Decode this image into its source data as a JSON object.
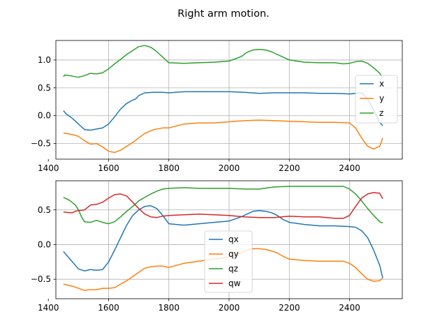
{
  "title": "Right arm motion.",
  "chart_data": [
    {
      "type": "line",
      "title": "",
      "xlabel": "",
      "ylabel": "",
      "xlim": [
        1425,
        2575
      ],
      "ylim": [
        -0.78,
        1.35
      ],
      "xticks": [
        1400,
        1600,
        1800,
        2000,
        2200,
        2400
      ],
      "yticks": [
        -0.5,
        0.0,
        0.5,
        1.0
      ],
      "xtick_labels": [
        "1400",
        "1600",
        "1800",
        "2000",
        "2200",
        "2400"
      ],
      "ytick_labels": [
        "−0.5",
        "0.0",
        "0.5",
        "1.0"
      ],
      "grid": true,
      "legend_position": "center-right",
      "series": [
        {
          "name": "x",
          "color": "#1f77b4",
          "x": [
            1450,
            1460,
            1480,
            1500,
            1520,
            1540,
            1560,
            1580,
            1600,
            1620,
            1640,
            1660,
            1680,
            1690,
            1700,
            1720,
            1750,
            1780,
            1800,
            1850,
            1900,
            1950,
            2000,
            2050,
            2100,
            2150,
            2200,
            2250,
            2300,
            2350,
            2400,
            2420,
            2440,
            2460,
            2480,
            2500,
            2510
          ],
          "y": [
            0.09,
            0.03,
            -0.05,
            -0.15,
            -0.25,
            -0.26,
            -0.24,
            -0.22,
            -0.15,
            -0.02,
            0.12,
            0.22,
            0.28,
            0.3,
            0.36,
            0.41,
            0.42,
            0.42,
            0.41,
            0.43,
            0.43,
            0.43,
            0.43,
            0.42,
            0.4,
            0.41,
            0.41,
            0.41,
            0.4,
            0.4,
            0.39,
            0.4,
            0.41,
            0.3,
            0.1,
            -0.12,
            -0.18
          ]
        },
        {
          "name": "y",
          "color": "#ff7f0e",
          "x": [
            1450,
            1480,
            1500,
            1520,
            1540,
            1560,
            1580,
            1600,
            1620,
            1640,
            1660,
            1680,
            1700,
            1720,
            1750,
            1780,
            1800,
            1850,
            1900,
            1950,
            2000,
            2050,
            2100,
            2150,
            2200,
            2250,
            2300,
            2350,
            2400,
            2420,
            2440,
            2460,
            2480,
            2500,
            2510
          ],
          "y": [
            -0.31,
            -0.34,
            -0.37,
            -0.45,
            -0.51,
            -0.5,
            -0.56,
            -0.64,
            -0.66,
            -0.62,
            -0.55,
            -0.48,
            -0.4,
            -0.32,
            -0.25,
            -0.22,
            -0.22,
            -0.15,
            -0.13,
            -0.13,
            -0.11,
            -0.09,
            -0.08,
            -0.09,
            -0.1,
            -0.11,
            -0.12,
            -0.12,
            -0.13,
            -0.22,
            -0.4,
            -0.55,
            -0.6,
            -0.55,
            -0.4
          ]
        },
        {
          "name": "z",
          "color": "#2ca02c",
          "x": [
            1450,
            1455,
            1470,
            1500,
            1520,
            1540,
            1560,
            1580,
            1600,
            1620,
            1640,
            1660,
            1680,
            1700,
            1720,
            1740,
            1760,
            1780,
            1800,
            1850,
            1900,
            1950,
            2000,
            2040,
            2060,
            2080,
            2100,
            2120,
            2140,
            2160,
            2180,
            2200,
            2250,
            2300,
            2350,
            2380,
            2400,
            2420,
            2440,
            2460,
            2480,
            2500,
            2510
          ],
          "y": [
            0.7,
            0.73,
            0.72,
            0.69,
            0.72,
            0.76,
            0.75,
            0.77,
            0.84,
            0.93,
            1.01,
            1.1,
            1.17,
            1.24,
            1.26,
            1.23,
            1.15,
            1.05,
            0.95,
            0.94,
            0.95,
            0.96,
            0.98,
            1.06,
            1.14,
            1.18,
            1.19,
            1.18,
            1.15,
            1.1,
            1.05,
            1.0,
            0.96,
            0.95,
            0.95,
            0.93,
            0.94,
            0.97,
            0.98,
            0.94,
            0.86,
            0.76,
            0.68
          ]
        }
      ]
    },
    {
      "type": "line",
      "title": "",
      "xlabel": "",
      "ylabel": "",
      "xlim": [
        1425,
        2575
      ],
      "ylim": [
        -0.78,
        0.92
      ],
      "xticks": [
        1400,
        1600,
        1800,
        2000,
        2200,
        2400
      ],
      "yticks": [
        -0.5,
        0.0,
        0.5
      ],
      "xtick_labels": [
        "1400",
        "1600",
        "1800",
        "2000",
        "2200",
        "2400"
      ],
      "ytick_labels": [
        "−0.5",
        "0.0",
        "0.5"
      ],
      "grid": true,
      "legend_position": "lower-center",
      "series": [
        {
          "name": "qx",
          "color": "#1f77b4",
          "x": [
            1450,
            1460,
            1480,
            1500,
            1520,
            1540,
            1560,
            1580,
            1600,
            1620,
            1640,
            1660,
            1680,
            1700,
            1720,
            1740,
            1760,
            1780,
            1800,
            1850,
            1900,
            1950,
            2000,
            2040,
            2060,
            2080,
            2100,
            2120,
            2140,
            2160,
            2180,
            2200,
            2250,
            2300,
            2350,
            2400,
            2420,
            2440,
            2460,
            2480,
            2500,
            2510
          ],
          "y": [
            -0.1,
            -0.15,
            -0.25,
            -0.35,
            -0.38,
            -0.36,
            -0.37,
            -0.36,
            -0.25,
            -0.08,
            0.1,
            0.28,
            0.42,
            0.5,
            0.55,
            0.56,
            0.52,
            0.42,
            0.3,
            0.28,
            0.3,
            0.32,
            0.34,
            0.4,
            0.44,
            0.48,
            0.49,
            0.48,
            0.46,
            0.42,
            0.36,
            0.32,
            0.29,
            0.27,
            0.27,
            0.26,
            0.25,
            0.2,
            0.1,
            -0.08,
            -0.3,
            -0.48
          ]
        },
        {
          "name": "qy",
          "color": "#ff7f0e",
          "x": [
            1450,
            1480,
            1500,
            1520,
            1540,
            1560,
            1580,
            1600,
            1620,
            1640,
            1660,
            1680,
            1700,
            1720,
            1740,
            1760,
            1780,
            1800,
            1850,
            1900,
            1950,
            2000,
            2040,
            2060,
            2080,
            2100,
            2120,
            2140,
            2160,
            2180,
            2200,
            2250,
            2300,
            2350,
            2380,
            2400,
            2420,
            2440,
            2460,
            2480,
            2500,
            2510
          ],
          "y": [
            -0.57,
            -0.6,
            -0.63,
            -0.66,
            -0.65,
            -0.65,
            -0.63,
            -0.63,
            -0.62,
            -0.57,
            -0.52,
            -0.46,
            -0.4,
            -0.34,
            -0.32,
            -0.31,
            -0.31,
            -0.33,
            -0.27,
            -0.24,
            -0.21,
            -0.18,
            -0.12,
            -0.08,
            -0.06,
            -0.06,
            -0.07,
            -0.09,
            -0.12,
            -0.17,
            -0.21,
            -0.23,
            -0.24,
            -0.24,
            -0.24,
            -0.27,
            -0.33,
            -0.42,
            -0.5,
            -0.53,
            -0.52,
            -0.48
          ]
        },
        {
          "name": "qz",
          "color": "#2ca02c",
          "x": [
            1450,
            1470,
            1490,
            1500,
            1510,
            1520,
            1540,
            1560,
            1580,
            1600,
            1620,
            1640,
            1660,
            1680,
            1700,
            1720,
            1740,
            1760,
            1780,
            1800,
            1850,
            1900,
            1950,
            2000,
            2050,
            2100,
            2150,
            2200,
            2250,
            2300,
            2350,
            2380,
            2400,
            2420,
            2440,
            2460,
            2480,
            2500,
            2510
          ],
          "y": [
            0.68,
            0.64,
            0.57,
            0.5,
            0.4,
            0.33,
            0.32,
            0.35,
            0.32,
            0.3,
            0.33,
            0.4,
            0.48,
            0.55,
            0.63,
            0.68,
            0.73,
            0.77,
            0.8,
            0.81,
            0.82,
            0.81,
            0.81,
            0.81,
            0.8,
            0.8,
            0.83,
            0.84,
            0.84,
            0.84,
            0.84,
            0.84,
            0.8,
            0.73,
            0.63,
            0.52,
            0.42,
            0.33,
            0.31
          ]
        },
        {
          "name": "qw",
          "color": "#d62728",
          "x": [
            1450,
            1470,
            1480,
            1490,
            1500,
            1520,
            1540,
            1560,
            1580,
            1600,
            1620,
            1640,
            1660,
            1680,
            1700,
            1720,
            1740,
            1760,
            1780,
            1800,
            1850,
            1900,
            1950,
            2000,
            2050,
            2100,
            2150,
            2200,
            2250,
            2300,
            2350,
            2380,
            2400,
            2420,
            2440,
            2460,
            2480,
            2500,
            2510
          ],
          "y": [
            0.47,
            0.46,
            0.46,
            0.48,
            0.49,
            0.5,
            0.57,
            0.58,
            0.61,
            0.67,
            0.72,
            0.73,
            0.7,
            0.61,
            0.52,
            0.44,
            0.4,
            0.39,
            0.41,
            0.42,
            0.43,
            0.44,
            0.43,
            0.42,
            0.4,
            0.39,
            0.39,
            0.41,
            0.4,
            0.4,
            0.38,
            0.38,
            0.42,
            0.55,
            0.67,
            0.73,
            0.75,
            0.74,
            0.66
          ]
        }
      ]
    }
  ]
}
